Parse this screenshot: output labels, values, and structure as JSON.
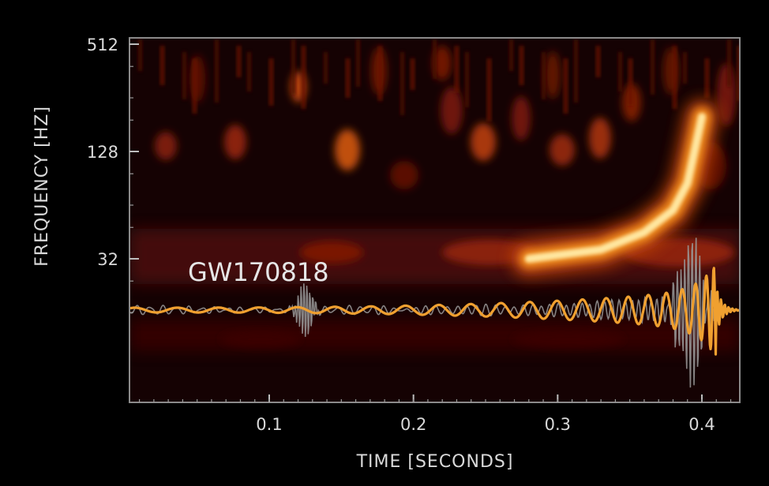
{
  "chart_data": {
    "type": "heatmap",
    "title": "",
    "xlabel": "TIME  [SECONDS]",
    "ylabel": "FREQUENCY  [HZ]",
    "x_ticks": [
      0.1,
      0.2,
      0.3,
      0.4
    ],
    "x_tick_labels": [
      "0.1",
      "0.2",
      "0.3",
      "0.4"
    ],
    "xlim": [
      0.0,
      0.43
    ],
    "y_scale": "log2",
    "y_ticks": [
      32,
      128,
      512
    ],
    "y_tick_labels": [
      "32",
      "128",
      "512"
    ],
    "ylim": [
      8,
      600
    ],
    "annotation": "GW170818",
    "colormap": "black-red-orange-yellow-white",
    "chirp_track": [
      {
        "t": 0.28,
        "f": 32
      },
      {
        "t": 0.33,
        "f": 36
      },
      {
        "t": 0.36,
        "f": 45
      },
      {
        "t": 0.38,
        "f": 60
      },
      {
        "t": 0.39,
        "f": 85
      },
      {
        "t": 0.395,
        "f": 130
      },
      {
        "t": 0.4,
        "f": 200
      }
    ],
    "series": [
      {
        "type": "waveform",
        "color": "#f0a030",
        "baseline_freq_position": 20,
        "description_t_range": [
          0.0,
          0.41
        ]
      },
      {
        "type": "data-trace",
        "color": "#9a9a9a",
        "baseline_freq_position": 20,
        "description_t_range": [
          0.0,
          0.43
        ]
      }
    ]
  },
  "colors": {
    "background": "#000000",
    "frame": "#8a8a8a",
    "waveform": "#f0a030",
    "data_trace": "#9a9a9a",
    "text": "#d9d9d9"
  }
}
